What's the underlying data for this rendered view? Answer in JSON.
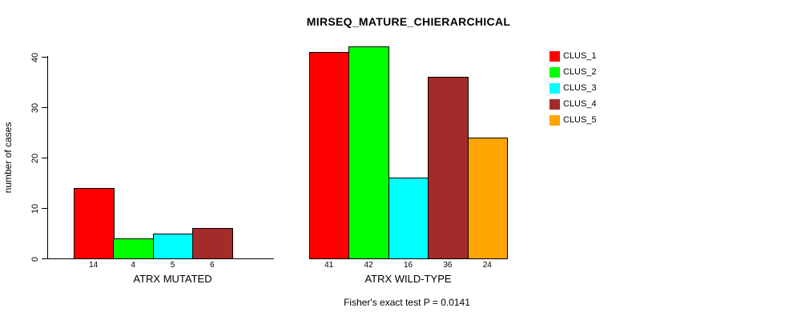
{
  "chart_data": {
    "type": "bar",
    "title": "MIRSEQ_MATURE_CHIERARCHICAL",
    "ylabel": "number of cases",
    "xlabel": "",
    "ylim": [
      0,
      40
    ],
    "yticks": [
      0,
      10,
      20,
      30,
      40
    ],
    "grid": false,
    "annotation": "Fisher's exact test P = 0.0141",
    "legend_position": "top-right",
    "legend": [
      {
        "label": "CLUS_1",
        "color": "#ff0000"
      },
      {
        "label": "CLUS_2",
        "color": "#00ff00"
      },
      {
        "label": "CLUS_3",
        "color": "#00ffff"
      },
      {
        "label": "CLUS_4",
        "color": "#a52a2a"
      },
      {
        "label": "CLUS_5",
        "color": "#ffa500"
      }
    ],
    "groups": [
      {
        "label": "ATRX MUTATED",
        "slots": 5,
        "bars": [
          {
            "cluster": "CLUS_1",
            "value": 14,
            "color": "#ff0000"
          },
          {
            "cluster": "CLUS_2",
            "value": 4,
            "color": "#00ff00"
          },
          {
            "cluster": "CLUS_3",
            "value": 5,
            "color": "#00ffff"
          },
          {
            "cluster": "CLUS_4",
            "value": 6,
            "color": "#a52a2a"
          }
        ]
      },
      {
        "label": "ATRX WILD-TYPE",
        "slots": 5,
        "bars": [
          {
            "cluster": "CLUS_1",
            "value": 41,
            "color": "#ff0000"
          },
          {
            "cluster": "CLUS_2",
            "value": 42,
            "color": "#00ff00"
          },
          {
            "cluster": "CLUS_3",
            "value": 16,
            "color": "#00ffff"
          },
          {
            "cluster": "CLUS_4",
            "value": 36,
            "color": "#a52a2a"
          },
          {
            "cluster": "CLUS_5",
            "value": 24,
            "color": "#ffa500"
          }
        ]
      }
    ]
  }
}
